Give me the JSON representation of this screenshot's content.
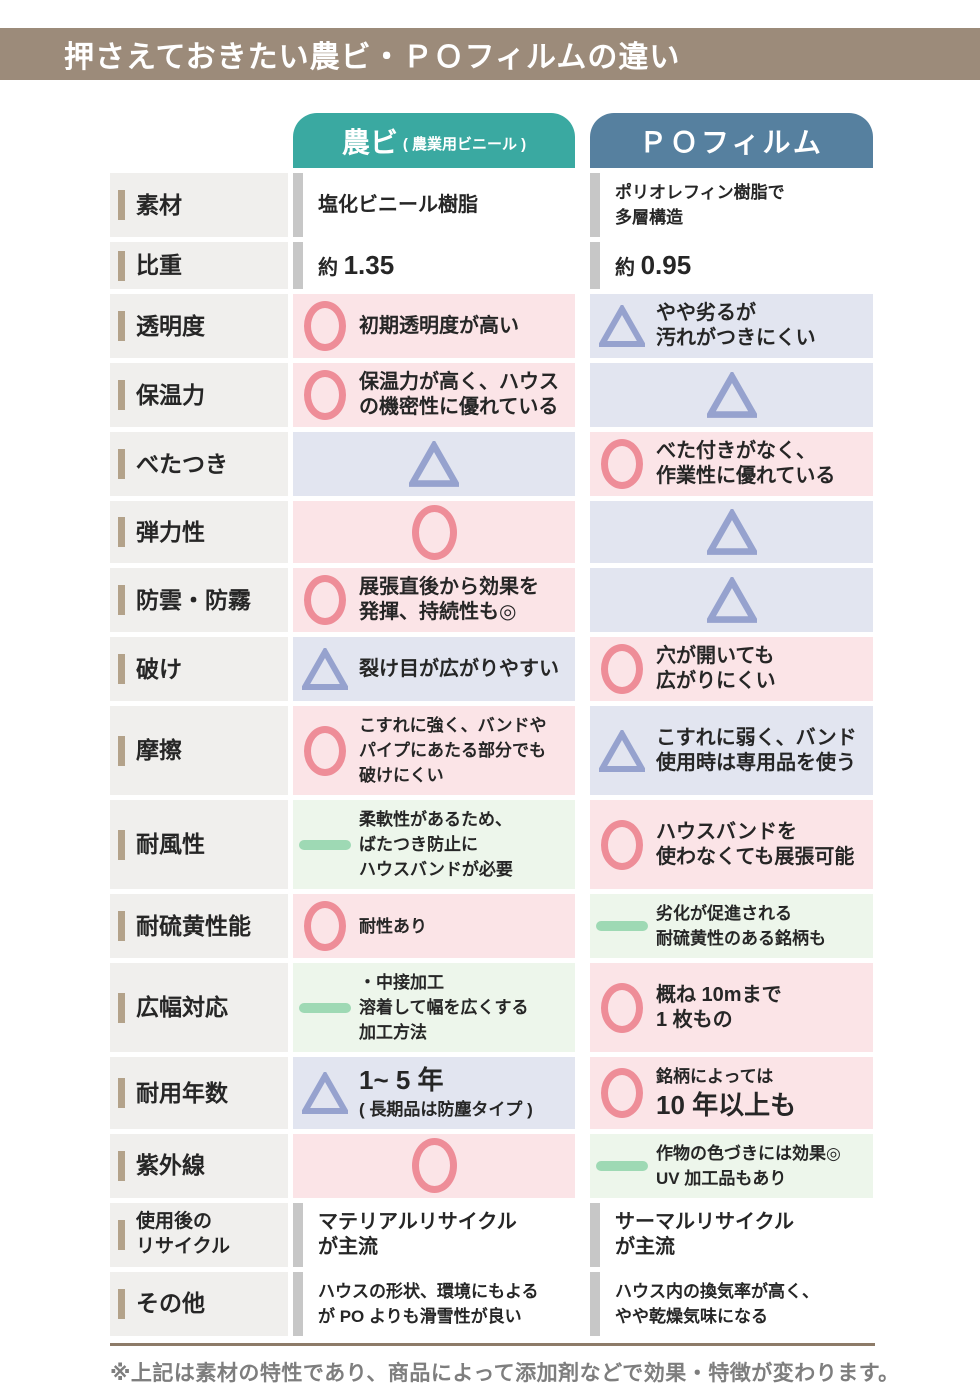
{
  "title": "押さえておきたい農ビ・ＰＯフィルムの違い",
  "columns": {
    "nobi": {
      "label": "農ビ",
      "sublabel": "( 農業用ビニール )",
      "color": "#3aa9a1"
    },
    "po": {
      "label": "ＰＯフィルム",
      "color": "#56809f"
    }
  },
  "icons": {
    "good": "circle-icon",
    "fair": "triangle-icon",
    "note": "dash-icon",
    "plain": "accent-bar"
  },
  "colors": {
    "title_bar_bg": "#9c8b7a",
    "label_bg": "#f0efed",
    "label_tick": "#b3a28a",
    "good_bg": "#fbe4e7",
    "fair_bg": "#e2e5f0",
    "note_bg": "#edf6eb",
    "circle": "#ee8d98",
    "triangle": "#96a2ce",
    "dash": "#9ed9b4",
    "plain_bar": "#c7c7c7",
    "text": "#262626",
    "footer_text": "#7e7e7e",
    "footer_rule": "#8d7b68"
  },
  "rows": [
    {
      "label": [
        "素材"
      ],
      "compact": true,
      "nobi": {
        "type": "plain",
        "lines": [
          [
            {
              "t": "塩化ビニール樹脂",
              "sz": "md"
            }
          ]
        ]
      },
      "po": {
        "type": "plain",
        "lines": [
          [
            {
              "t": "ポリオレフィン樹脂で",
              "sz": "sm"
            }
          ],
          [
            {
              "t": "多層構造",
              "sz": "sm"
            }
          ]
        ]
      }
    },
    {
      "label": [
        "比重"
      ],
      "compact": true,
      "nobi": {
        "type": "plain",
        "lines": [
          [
            {
              "t": "約 ",
              "sz": "md"
            },
            {
              "t": "1.35",
              "sz": "lg"
            }
          ]
        ]
      },
      "po": {
        "type": "plain",
        "lines": [
          [
            {
              "t": "約 ",
              "sz": "md"
            },
            {
              "t": "0.95",
              "sz": "lg"
            }
          ]
        ]
      }
    },
    {
      "label": [
        "透明度"
      ],
      "nobi": {
        "type": "good",
        "lines": [
          [
            {
              "t": "初期透明度が高い",
              "sz": "md"
            }
          ]
        ]
      },
      "po": {
        "type": "fair",
        "lines": [
          [
            {
              "t": "やや劣るが",
              "sz": "md"
            }
          ],
          [
            {
              "t": "汚れがつきにくい",
              "sz": "md"
            }
          ]
        ]
      }
    },
    {
      "label": [
        "保温力"
      ],
      "nobi": {
        "type": "good",
        "lines": [
          [
            {
              "t": "保温力が高く、ハウス",
              "sz": "md"
            }
          ],
          [
            {
              "t": "の機密性に優れている",
              "sz": "md"
            }
          ]
        ]
      },
      "po": {
        "type": "fair",
        "lines": []
      }
    },
    {
      "label": [
        "べたつき"
      ],
      "nobi": {
        "type": "fair",
        "lines": []
      },
      "po": {
        "type": "good",
        "lines": [
          [
            {
              "t": "べた付きがなく、",
              "sz": "md"
            }
          ],
          [
            {
              "t": "作業性に優れている",
              "sz": "md"
            }
          ]
        ]
      }
    },
    {
      "label": [
        "弾力性"
      ],
      "nobi": {
        "type": "good",
        "lines": []
      },
      "po": {
        "type": "fair",
        "lines": []
      }
    },
    {
      "label": [
        "防雲・防霧"
      ],
      "nobi": {
        "type": "good",
        "lines": [
          [
            {
              "t": "展張直後から効果を",
              "sz": "md"
            }
          ],
          [
            {
              "t": "発揮、持続性も◎",
              "sz": "md"
            }
          ]
        ]
      },
      "po": {
        "type": "fair",
        "lines": []
      }
    },
    {
      "label": [
        "破け"
      ],
      "nobi": {
        "type": "fair",
        "lines": [
          [
            {
              "t": "裂け目が広がりやすい",
              "sz": "md"
            }
          ]
        ]
      },
      "po": {
        "type": "good",
        "lines": [
          [
            {
              "t": "穴が開いても",
              "sz": "md"
            }
          ],
          [
            {
              "t": "広がりにくい",
              "sz": "md"
            }
          ]
        ]
      }
    },
    {
      "label": [
        "摩擦"
      ],
      "nobi": {
        "type": "good",
        "lines": [
          [
            {
              "t": "こすれに強く、バンドや",
              "sz": "sm"
            }
          ],
          [
            {
              "t": "パイプにあたる部分でも",
              "sz": "sm"
            }
          ],
          [
            {
              "t": "破けにくい",
              "sz": "sm"
            }
          ]
        ]
      },
      "po": {
        "type": "fair",
        "lines": [
          [
            {
              "t": "こすれに弱く、バンド",
              "sz": "md"
            }
          ],
          [
            {
              "t": "使用時は専用品を使う",
              "sz": "md"
            }
          ]
        ]
      }
    },
    {
      "label": [
        "耐風性"
      ],
      "nobi": {
        "type": "note",
        "lines": [
          [
            {
              "t": "柔軟性があるため、",
              "sz": "sm"
            }
          ],
          [
            {
              "t": "ばたつき防止に",
              "sz": "sm"
            }
          ],
          [
            {
              "t": "ハウスバンドが必要",
              "sz": "sm"
            }
          ]
        ]
      },
      "po": {
        "type": "good",
        "lines": [
          [
            {
              "t": "ハウスバンドを",
              "sz": "md"
            }
          ],
          [
            {
              "t": "使わなくても展張可能",
              "sz": "md"
            }
          ]
        ]
      }
    },
    {
      "label": [
        "耐硫黄性能"
      ],
      "nobi": {
        "type": "good",
        "lines": [
          [
            {
              "t": "耐性あり",
              "sz": "sm"
            }
          ]
        ]
      },
      "po": {
        "type": "note",
        "lines": [
          [
            {
              "t": "劣化が促進される",
              "sz": "sm"
            }
          ],
          [
            {
              "t": "耐硫黄性のある銘柄も",
              "sz": "sm"
            }
          ]
        ]
      }
    },
    {
      "label": [
        "広幅対応"
      ],
      "nobi": {
        "type": "note",
        "lines": [
          [
            {
              "t": "・中接加工",
              "sz": "sm"
            }
          ],
          [
            {
              "t": "溶着して幅を広くする",
              "sz": "sm"
            }
          ],
          [
            {
              "t": "加工方法",
              "sz": "sm"
            }
          ]
        ]
      },
      "po": {
        "type": "good",
        "lines": [
          [
            {
              "t": "概ね 10mまで",
              "sz": "md"
            }
          ],
          [
            {
              "t": "1 枚もの",
              "sz": "md"
            }
          ]
        ]
      }
    },
    {
      "label": [
        "耐用年数"
      ],
      "nobi": {
        "type": "fair",
        "lines": [
          [
            {
              "t": "1~ 5 年",
              "sz": "lg"
            }
          ],
          [
            {
              "t": "( 長期品は防塵タイプ )",
              "sz": "sm"
            }
          ]
        ]
      },
      "po": {
        "type": "good",
        "lines": [
          [
            {
              "t": "銘柄によっては",
              "sz": "sm"
            }
          ],
          [
            {
              "t": "10 年以上も",
              "sz": "lg"
            }
          ]
        ]
      }
    },
    {
      "label": [
        "紫外線"
      ],
      "nobi": {
        "type": "good",
        "lines": []
      },
      "po": {
        "type": "note",
        "lines": [
          [
            {
              "t": "作物の色づきには効果◎",
              "sz": "sm"
            }
          ],
          [
            {
              "t": "UV 加工品もあり",
              "sz": "sm"
            }
          ]
        ]
      }
    },
    {
      "label": [
        "使用後の",
        "リサイクル"
      ],
      "nobi": {
        "type": "plain",
        "lines": [
          [
            {
              "t": "マテリアルリサイクル",
              "sz": "md"
            }
          ],
          [
            {
              "t": "が主流",
              "sz": "md"
            }
          ]
        ]
      },
      "po": {
        "type": "plain",
        "lines": [
          [
            {
              "t": "サーマルリサイクル",
              "sz": "md"
            }
          ],
          [
            {
              "t": "が主流",
              "sz": "md"
            }
          ]
        ]
      }
    },
    {
      "label": [
        "その他"
      ],
      "nobi": {
        "type": "plain",
        "lines": [
          [
            {
              "t": "ハウスの形状、環境にもよる",
              "sz": "sm"
            }
          ],
          [
            {
              "t": "が PO よりも滑雪性が良い",
              "sz": "sm"
            }
          ]
        ]
      },
      "po": {
        "type": "plain",
        "lines": [
          [
            {
              "t": "ハウス内の換気率が高く、",
              "sz": "sm"
            }
          ],
          [
            {
              "t": "やや乾燥気味になる",
              "sz": "sm"
            }
          ]
        ]
      }
    }
  ],
  "footer": {
    "note": "※上記は素材の特性であり、商品によって添加剤などで効果・特徴が変わります。"
  }
}
